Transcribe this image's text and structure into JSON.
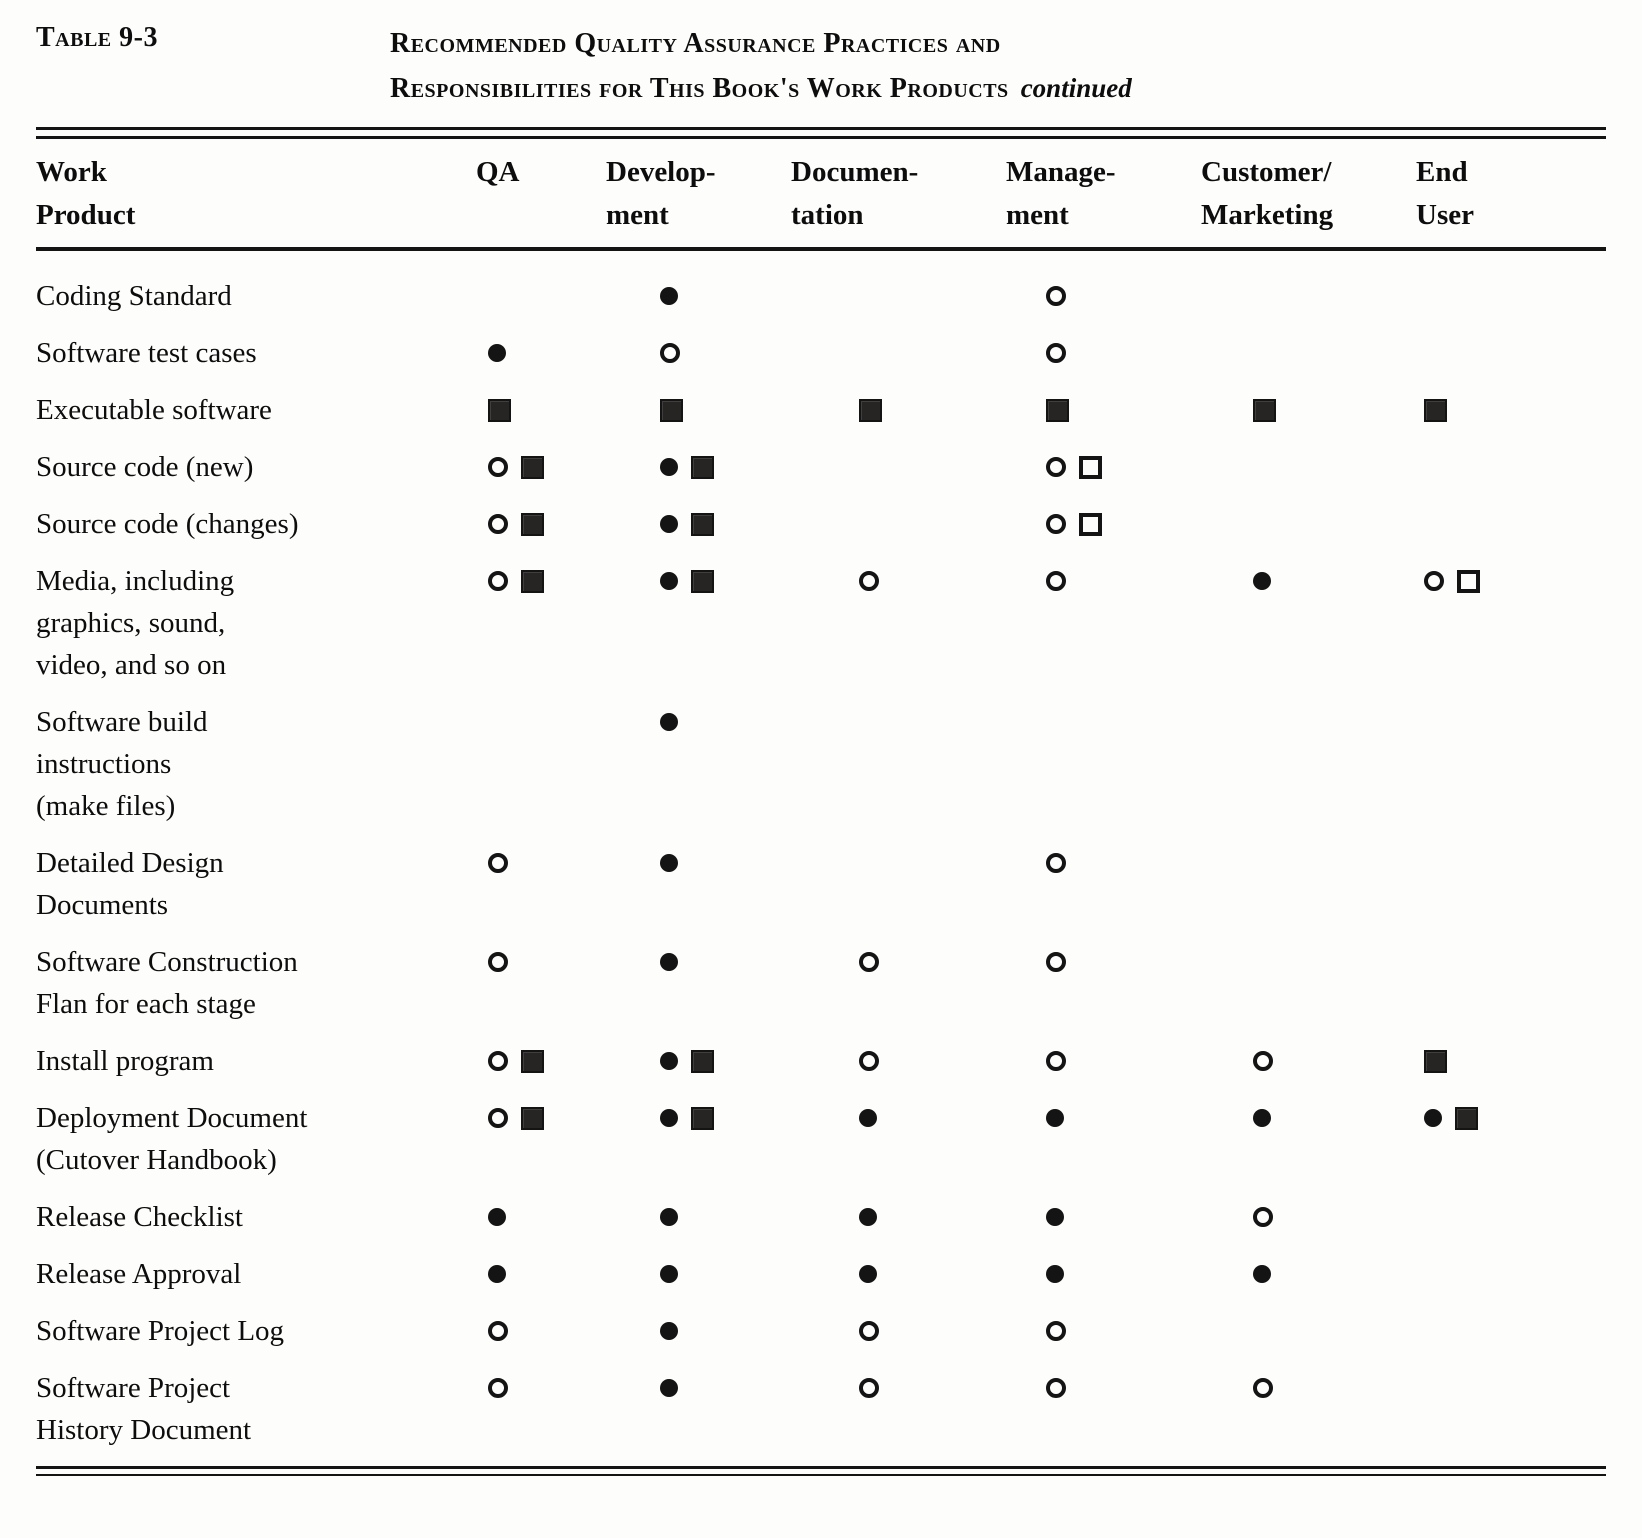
{
  "header": {
    "table_label": "Table 9-3",
    "title_line1": "Recommended Quality Assurance Practices and",
    "title_line2": "Responsibilities for This Book's Work Products",
    "title_continued": "continued"
  },
  "symbols": {
    "fc": "filled-circle",
    "oc": "open-circle",
    "fs": "filled-square",
    "os": "open-square"
  },
  "table": {
    "columns": [
      {
        "lines": [
          "Work",
          "Product"
        ]
      },
      {
        "lines": [
          "QA"
        ]
      },
      {
        "lines": [
          "Develop-",
          "ment"
        ]
      },
      {
        "lines": [
          "Documen-",
          "tation"
        ]
      },
      {
        "lines": [
          "Manage-",
          "ment"
        ]
      },
      {
        "lines": [
          "Customer/",
          "Marketing"
        ]
      },
      {
        "lines": [
          "End",
          "User"
        ]
      }
    ],
    "rows": [
      {
        "name": [
          "Coding Standard"
        ],
        "cells": [
          [],
          [
            "fc"
          ],
          [],
          [
            "oc"
          ],
          [],
          []
        ]
      },
      {
        "name": [
          "Software test cases"
        ],
        "cells": [
          [
            "fc"
          ],
          [
            "oc"
          ],
          [],
          [
            "oc"
          ],
          [],
          []
        ]
      },
      {
        "name": [
          "Executable software"
        ],
        "cells": [
          [
            "fs"
          ],
          [
            "fs"
          ],
          [
            "fs"
          ],
          [
            "fs"
          ],
          [
            "fs"
          ],
          [
            "fs"
          ]
        ]
      },
      {
        "name": [
          "Source code (new)"
        ],
        "cells": [
          [
            "oc",
            "fs"
          ],
          [
            "fc",
            "fs"
          ],
          [],
          [
            "oc",
            "os"
          ],
          [],
          []
        ]
      },
      {
        "name": [
          "Source code (changes)"
        ],
        "cells": [
          [
            "oc",
            "fs"
          ],
          [
            "fc",
            "fs"
          ],
          [],
          [
            "oc",
            "os"
          ],
          [],
          []
        ]
      },
      {
        "name": [
          "Media, including",
          "graphics, sound,",
          "video, and so on"
        ],
        "cells": [
          [
            "oc",
            "fs"
          ],
          [
            "fc",
            "fs"
          ],
          [
            "oc"
          ],
          [
            "oc"
          ],
          [
            "fc"
          ],
          [
            "oc",
            "os"
          ]
        ]
      },
      {
        "name": [
          "Software build",
          "instructions",
          "(make files)"
        ],
        "cells": [
          [],
          [
            "fc"
          ],
          [],
          [],
          [],
          []
        ]
      },
      {
        "name": [
          "Detailed Design",
          "Documents"
        ],
        "cells": [
          [
            "oc"
          ],
          [
            "fc"
          ],
          [],
          [
            "oc"
          ],
          [],
          []
        ]
      },
      {
        "name": [
          "Software Construction",
          "Flan for each stage"
        ],
        "cells": [
          [
            "oc"
          ],
          [
            "fc"
          ],
          [
            "oc"
          ],
          [
            "oc"
          ],
          [],
          []
        ]
      },
      {
        "name": [
          "Install program"
        ],
        "cells": [
          [
            "oc",
            "fs"
          ],
          [
            "fc",
            "fs"
          ],
          [
            "oc"
          ],
          [
            "oc"
          ],
          [
            "oc"
          ],
          [
            "fs"
          ]
        ]
      },
      {
        "name": [
          "Deployment Document",
          "(Cutover Handbook)"
        ],
        "cells": [
          [
            "oc",
            "fs"
          ],
          [
            "fc",
            "fs"
          ],
          [
            "fc"
          ],
          [
            "fc"
          ],
          [
            "fc"
          ],
          [
            "fc",
            "fs"
          ]
        ]
      },
      {
        "name": [
          "Release Checklist"
        ],
        "cells": [
          [
            "fc"
          ],
          [
            "fc"
          ],
          [
            "fc"
          ],
          [
            "fc"
          ],
          [
            "oc"
          ],
          []
        ]
      },
      {
        "name": [
          "Release Approval"
        ],
        "cells": [
          [
            "fc"
          ],
          [
            "fc"
          ],
          [
            "fc"
          ],
          [
            "fc"
          ],
          [
            "fc"
          ],
          []
        ]
      },
      {
        "name": [
          "Software Project Log"
        ],
        "cells": [
          [
            "oc"
          ],
          [
            "fc"
          ],
          [
            "oc"
          ],
          [
            "oc"
          ],
          [],
          []
        ]
      },
      {
        "name": [
          "Software Project",
          "History Document"
        ],
        "cells": [
          [
            "oc"
          ],
          [
            "fc"
          ],
          [
            "oc"
          ],
          [
            "oc"
          ],
          [
            "oc"
          ],
          []
        ]
      }
    ]
  }
}
